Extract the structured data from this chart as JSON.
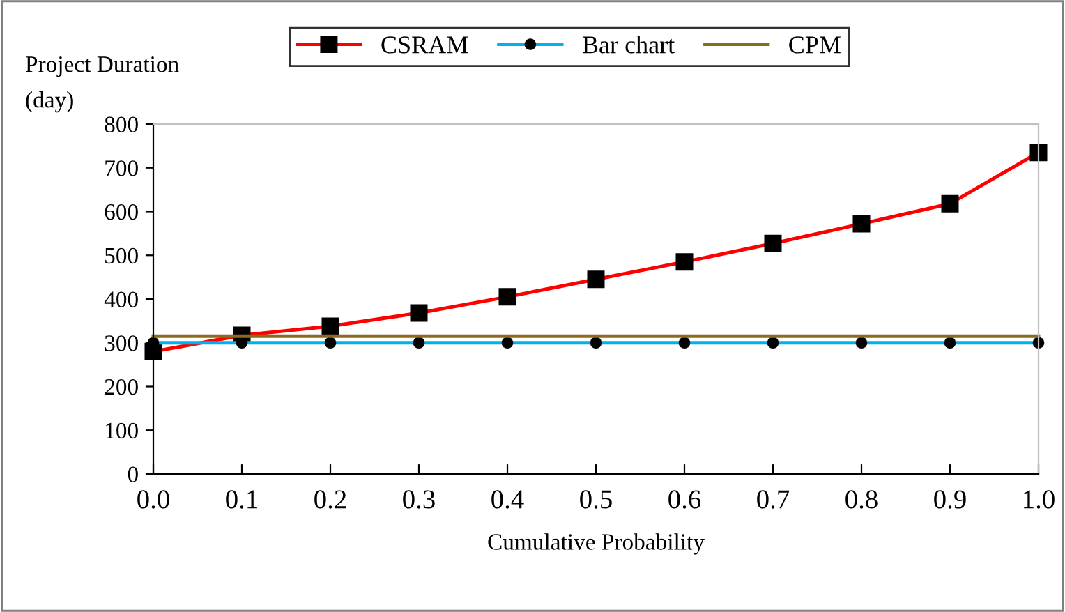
{
  "chart_data": {
    "type": "line",
    "xlabel": "Cumulative Probability",
    "ylabel": "Project Duration\n(day)",
    "x": [
      0.0,
      0.1,
      0.2,
      0.3,
      0.4,
      0.5,
      0.6,
      0.7,
      0.8,
      0.9,
      1.0
    ],
    "series": [
      {
        "name": "CSRAM",
        "color": "#ff0000",
        "marker": "square",
        "values": [
          280,
          317,
          338,
          368,
          405,
          445,
          485,
          527,
          572,
          618,
          735
        ]
      },
      {
        "name": "Bar chart",
        "color": "#00b0f0",
        "marker": "circle",
        "values": [
          300,
          300,
          300,
          300,
          300,
          300,
          300,
          300,
          300,
          300,
          300
        ]
      },
      {
        "name": "CPM",
        "color": "#8b6c1e",
        "marker": "none",
        "values": [
          315,
          315,
          315,
          315,
          315,
          315,
          315,
          315,
          315,
          315,
          315
        ]
      }
    ],
    "xlim": [
      0,
      1
    ],
    "ylim": [
      0,
      800
    ],
    "xticks": [
      {
        "value": 0.0,
        "label": "0.0"
      },
      {
        "value": 0.1,
        "label": "0.1"
      },
      {
        "value": 0.2,
        "label": "0.2"
      },
      {
        "value": 0.3,
        "label": "0.3"
      },
      {
        "value": 0.4,
        "label": "0.4"
      },
      {
        "value": 0.5,
        "label": "0.5"
      },
      {
        "value": 0.6,
        "label": "0.6"
      },
      {
        "value": 0.7,
        "label": "0.7"
      },
      {
        "value": 0.8,
        "label": "0.8"
      },
      {
        "value": 0.9,
        "label": "0.9"
      },
      {
        "value": 1.0,
        "label": "1.0"
      }
    ],
    "yticks": [
      0,
      100,
      200,
      300,
      400,
      500,
      600,
      700,
      800
    ],
    "grid": false,
    "legend": "top",
    "line_style": "solid"
  }
}
